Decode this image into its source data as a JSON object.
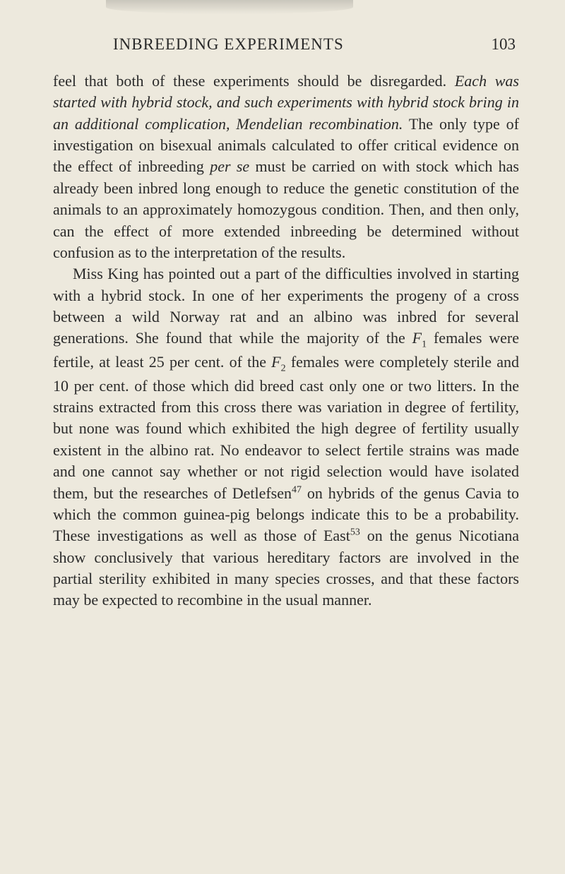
{
  "header": {
    "title": "INBREEDING EXPERIMENTS",
    "page_number": "103"
  },
  "paragraphs": {
    "p1_part1": "feel that both of these experiments should be disregarded. ",
    "p1_italic": "Each was started with hybrid stock, and such experiments with hybrid stock bring in an additional complication, Mendelian recombination.",
    "p1_part2": " The only type of investigation on bisexual animals calculated to offer critical evidence on the effect of inbreeding ",
    "p1_italic2": "per se",
    "p1_part3": " must be carried on with stock which has already been inbred long enough to reduce the genetic constitution of the animals to an approximately homozygous condition. Then, and then only, can the effect of more extended inbreeding be determined without confusion as to the interpretation of the results.",
    "p2_part1": "Miss King has pointed out a part of the difficulties involved in starting with a hybrid stock. In one of her experiments the progeny of a cross between a wild Norway rat and an albino was inbred for several generations. She found that while the majority of the ",
    "p2_f1": "F",
    "p2_sub1": "1",
    "p2_part2": " females were fertile, at least 25 per cent. of the ",
    "p2_f2": "F",
    "p2_sub2": "2",
    "p2_part3": " females were completely sterile and 10 per cent. of those which did breed cast only one or two litters. In the strains extracted from this cross there was variation in degree of fertility, but none was found which exhibited the high degree of fertility usually existent in the albino rat. No endeavor to select fertile strains was made and one cannot say whether or not rigid selection would have isolated them, but the researches of Detlefsen",
    "p2_sup1": "47",
    "p2_part4": " on hybrids of the genus Cavia to which the common guinea-pig belongs indicate this to be a probability. These investigations as well as those of East",
    "p2_sup2": "53",
    "p2_part5": " on the genus Nicotiana show conclusively that various hereditary factors are involved in the partial sterility exhibited in many species crosses, and that these factors may be expected to recombine in the usual manner."
  },
  "colors": {
    "background": "#ede9dd",
    "text": "#2a2a2a"
  },
  "typography": {
    "body_fontsize": 22,
    "header_fontsize": 23,
    "line_height": 1.38
  }
}
